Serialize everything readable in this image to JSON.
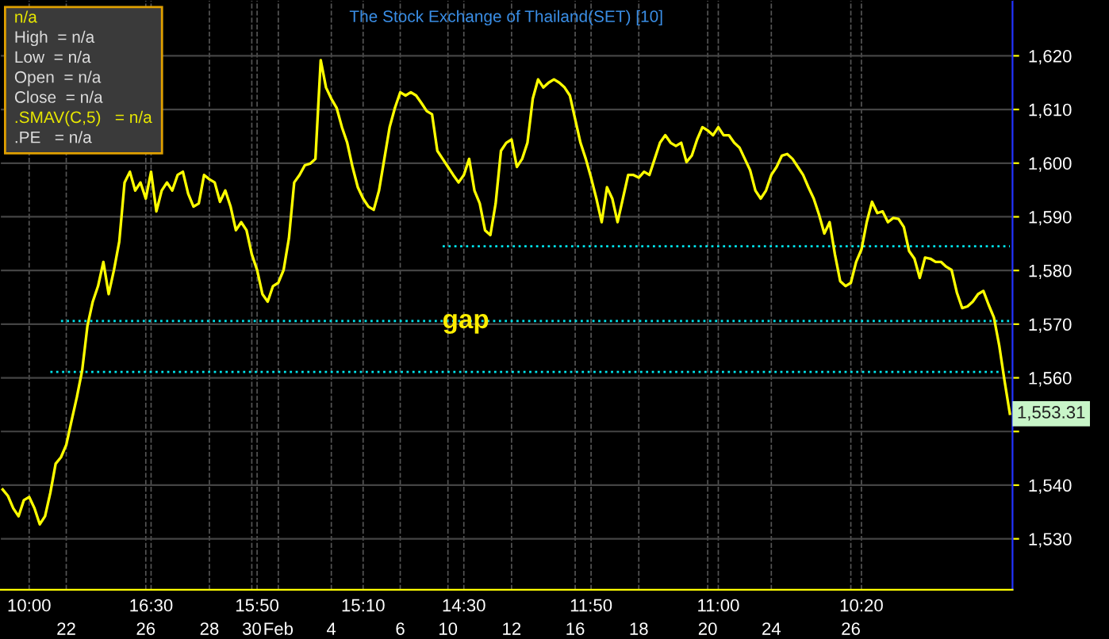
{
  "chart_data": {
    "type": "line",
    "title": "The Stock Exchange of Thailand(SET) [10]",
    "categories": [
      null,
      null,
      null,
      null,
      null,
      "10:00",
      null,
      null,
      null,
      null,
      null,
      null,
      "\n22",
      null,
      null,
      null,
      null,
      null,
      null,
      null,
      null,
      null,
      null,
      null,
      null,
      null,
      null,
      "\n26",
      "16:30",
      null,
      null,
      null,
      null,
      null,
      null,
      null,
      null,
      null,
      null,
      "\n28",
      null,
      null,
      null,
      null,
      null,
      null,
      null,
      "\n30",
      "15:50",
      null,
      null,
      null,
      "\nFeb",
      null,
      null,
      null,
      null,
      null,
      null,
      null,
      null,
      null,
      "\n4",
      null,
      null,
      null,
      null,
      null,
      "15:10",
      null,
      null,
      null,
      null,
      null,
      null,
      "\n6",
      null,
      null,
      null,
      null,
      null,
      null,
      null,
      null,
      "\n10",
      null,
      null,
      "14:30",
      null,
      null,
      null,
      null,
      null,
      null,
      null,
      null,
      "\n12",
      null,
      null,
      null,
      null,
      null,
      null,
      null,
      null,
      null,
      null,
      null,
      "\n16",
      null,
      null,
      "11:50",
      null,
      null,
      null,
      null,
      null,
      null,
      null,
      null,
      "\n18",
      null,
      null,
      null,
      null,
      null,
      null,
      null,
      null,
      null,
      null,
      null,
      null,
      "\n20",
      null,
      "11:00",
      null,
      null,
      null,
      null,
      null,
      null,
      null,
      null,
      null,
      "\n24",
      null,
      null,
      null,
      null,
      null,
      null,
      null,
      null,
      null,
      null,
      null,
      null,
      null,
      null,
      "\n26",
      null,
      "10:20",
      null,
      null,
      null,
      null,
      null,
      null,
      null,
      null,
      null,
      null,
      null,
      null,
      null,
      null,
      null,
      null,
      null,
      null,
      null,
      null,
      null,
      null,
      null,
      null,
      null,
      null,
      null,
      null
    ],
    "series": [
      {
        "color": "#ffff00",
        "values": [
          1539.2,
          1538.0,
          1535.7,
          1534.2,
          1537.2,
          1537.8,
          1535.7,
          1532.7,
          1534.2,
          1538.6,
          1544.0,
          1545.2,
          1547.5,
          1552.0,
          1556.4,
          1561.4,
          1569.7,
          1574.2,
          1577.1,
          1581.6,
          1575.6,
          1580.1,
          1585.4,
          1596.4,
          1598.4,
          1594.9,
          1596.4,
          1593.4,
          1598.4,
          1591.0,
          1594.9,
          1596.4,
          1594.9,
          1597.8,
          1598.4,
          1594.3,
          1591.9,
          1592.5,
          1597.8,
          1597.0,
          1596.4,
          1592.8,
          1594.9,
          1591.9,
          1587.5,
          1589.0,
          1587.5,
          1583.0,
          1580.1,
          1575.6,
          1574.2,
          1577.1,
          1577.7,
          1580.1,
          1586.0,
          1596.4,
          1597.8,
          1599.6,
          1599.9,
          1600.8,
          1619.2,
          1614.1,
          1612.0,
          1610.3,
          1606.7,
          1603.8,
          1599.3,
          1595.5,
          1593.4,
          1591.9,
          1591.3,
          1594.9,
          1600.8,
          1606.7,
          1610.3,
          1613.2,
          1612.6,
          1613.2,
          1612.6,
          1611.2,
          1609.7,
          1609.1,
          1602.3,
          1600.8,
          1599.3,
          1597.8,
          1596.4,
          1597.8,
          1600.8,
          1594.9,
          1592.5,
          1587.5,
          1586.6,
          1592.5,
          1602.3,
          1603.8,
          1604.4,
          1599.3,
          1600.8,
          1603.8,
          1612.0,
          1615.6,
          1614.1,
          1615.0,
          1615.6,
          1615.0,
          1614.1,
          1612.6,
          1608.2,
          1603.8,
          1600.8,
          1597.3,
          1593.4,
          1589.0,
          1595.5,
          1593.4,
          1589.0,
          1593.4,
          1597.8,
          1597.8,
          1597.3,
          1598.4,
          1597.8,
          1600.8,
          1603.8,
          1605.2,
          1603.8,
          1603.2,
          1603.8,
          1600.2,
          1601.4,
          1604.4,
          1606.7,
          1606.1,
          1605.2,
          1606.7,
          1605.2,
          1605.2,
          1603.8,
          1602.9,
          1600.8,
          1598.7,
          1594.9,
          1593.4,
          1594.9,
          1597.8,
          1599.3,
          1601.4,
          1601.7,
          1600.8,
          1599.3,
          1597.8,
          1595.5,
          1593.4,
          1590.4,
          1586.9,
          1589.0,
          1583.0,
          1578.0,
          1577.1,
          1577.7,
          1581.6,
          1583.9,
          1589.0,
          1592.8,
          1590.7,
          1591.0,
          1589.0,
          1589.8,
          1589.6,
          1588.1,
          1583.6,
          1582.2,
          1578.6,
          1582.4,
          1582.2,
          1581.6,
          1581.6,
          1580.7,
          1580.1,
          1575.9,
          1573.0,
          1573.3,
          1574.2,
          1575.6,
          1576.2,
          1573.6,
          1571.2,
          1566.0,
          1559.4,
          1553.31
        ]
      },
      {
        "color": "#00e5ee",
        "line_style": "dotted",
        "values": [
          null,
          null,
          null,
          null,
          null,
          null,
          null,
          null,
          null,
          null,
          null,
          null,
          null,
          null,
          null,
          null,
          null,
          null,
          null,
          null,
          null,
          null,
          null,
          null,
          null,
          null,
          null,
          null,
          null,
          null,
          null,
          null,
          null,
          null,
          null,
          null,
          null,
          null,
          null,
          null,
          null,
          null,
          null,
          null,
          null,
          null,
          null,
          null,
          null,
          null,
          null,
          null,
          null,
          null,
          null,
          null,
          null,
          null,
          null,
          null,
          null,
          null,
          null,
          null,
          null,
          null,
          null,
          null,
          null,
          null,
          null,
          null,
          null,
          null,
          null,
          null,
          null,
          null,
          null,
          null,
          null,
          null,
          null,
          1584.5,
          1584.5,
          1584.5,
          1584.5,
          1584.5,
          1584.5,
          1584.5,
          1584.5,
          1584.5,
          1584.5,
          1584.5,
          1584.5,
          1584.5,
          1584.5,
          1584.5,
          1584.5,
          1584.5,
          1584.5,
          1584.5,
          1584.5,
          1584.5,
          1584.5,
          1584.5,
          1584.5,
          1584.5,
          1584.5,
          1584.5,
          1584.5,
          1584.5,
          1584.5,
          1584.5,
          1584.5,
          1584.5,
          1584.5,
          1584.5,
          1584.5,
          1584.5,
          1584.5,
          1584.5,
          1584.5,
          1584.5,
          1584.5,
          1584.5,
          1584.5,
          1584.5,
          1584.5,
          1584.5,
          1584.5,
          1584.5,
          1584.5,
          1584.5,
          1584.5,
          1584.5,
          1584.5,
          1584.5,
          1584.5,
          1584.5,
          1584.5,
          1584.5,
          1584.5,
          1584.5,
          1584.5,
          1584.5,
          1584.5,
          1584.5,
          1584.5,
          1584.5,
          1584.5,
          1584.5,
          1584.5,
          1584.5,
          1584.5,
          1584.5,
          1584.5,
          1584.5,
          1584.5,
          1584.5,
          1584.5,
          1584.5,
          1584.5,
          1584.5,
          1584.5,
          1584.5,
          1584.5,
          1584.5,
          1584.5,
          1584.5,
          1584.5,
          1584.5,
          1584.5,
          1584.5,
          1584.5,
          1584.5,
          1584.5,
          1584.5,
          1584.5,
          1584.5,
          1584.5,
          1584.5,
          1584.5,
          1584.5,
          1584.5,
          1584.5,
          1584.5,
          1584.5,
          1584.5,
          1584.5,
          1584.5
        ]
      },
      {
        "color": "#00e5ee",
        "line_style": "dotted",
        "values": [
          null,
          null,
          null,
          null,
          null,
          null,
          null,
          null,
          null,
          null,
          null,
          1570.6,
          1570.6,
          1570.6,
          1570.6,
          1570.6,
          1570.6,
          1570.6,
          1570.6,
          1570.6,
          1570.6,
          1570.6,
          1570.6,
          1570.6,
          1570.6,
          1570.6,
          1570.6,
          1570.6,
          1570.6,
          1570.6,
          1570.6,
          1570.6,
          1570.6,
          1570.6,
          1570.6,
          1570.6,
          1570.6,
          1570.6,
          1570.6,
          1570.6,
          1570.6,
          1570.6,
          1570.6,
          1570.6,
          1570.6,
          1570.6,
          1570.6,
          1570.6,
          1570.6,
          1570.6,
          1570.6,
          1570.6,
          1570.6,
          1570.6,
          1570.6,
          1570.6,
          1570.6,
          1570.6,
          1570.6,
          1570.6,
          1570.6,
          1570.6,
          1570.6,
          1570.6,
          1570.6,
          1570.6,
          1570.6,
          1570.6,
          1570.6,
          1570.6,
          1570.6,
          1570.6,
          1570.6,
          1570.6,
          1570.6,
          1570.6,
          1570.6,
          1570.6,
          1570.6,
          1570.6,
          1570.6,
          1570.6,
          1570.6,
          1570.6,
          1570.6,
          1570.6,
          1570.6,
          1570.6,
          1570.6,
          1570.6,
          1570.6,
          1570.6,
          1570.6,
          1570.6,
          1570.6,
          1570.6,
          1570.6,
          1570.6,
          1570.6,
          1570.6,
          1570.6,
          1570.6,
          1570.6,
          1570.6,
          1570.6,
          1570.6,
          1570.6,
          1570.6,
          1570.6,
          1570.6,
          1570.6,
          1570.6,
          1570.6,
          1570.6,
          1570.6,
          1570.6,
          1570.6,
          1570.6,
          1570.6,
          1570.6,
          1570.6,
          1570.6,
          1570.6,
          1570.6,
          1570.6,
          1570.6,
          1570.6,
          1570.6,
          1570.6,
          1570.6,
          1570.6,
          1570.6,
          1570.6,
          1570.6,
          1570.6,
          1570.6,
          1570.6,
          1570.6,
          1570.6,
          1570.6,
          1570.6,
          1570.6,
          1570.6,
          1570.6,
          1570.6,
          1570.6,
          1570.6,
          1570.6,
          1570.6,
          1570.6,
          1570.6,
          1570.6,
          1570.6,
          1570.6,
          1570.6,
          1570.6,
          1570.6,
          1570.6,
          1570.6,
          1570.6,
          1570.6,
          1570.6,
          1570.6,
          1570.6,
          1570.6,
          1570.6,
          1570.6,
          1570.6,
          1570.6,
          1570.6,
          1570.6,
          1570.6,
          1570.6,
          1570.6,
          1570.6,
          1570.6,
          1570.6,
          1570.6,
          1570.6,
          1570.6,
          1570.6,
          1570.6,
          1570.6,
          1570.6,
          1570.6,
          1570.6,
          1570.6,
          1570.6,
          1570.6,
          1570.6,
          1570.6
        ]
      },
      {
        "color": "#00e5ee",
        "line_style": "dotted",
        "values": [
          null,
          null,
          null,
          null,
          null,
          null,
          null,
          null,
          null,
          1561.1,
          1561.1,
          1561.1,
          1561.1,
          1561.1,
          1561.1,
          1561.1,
          1561.1,
          1561.1,
          1561.1,
          1561.1,
          1561.1,
          1561.1,
          1561.1,
          1561.1,
          1561.1,
          1561.1,
          1561.1,
          1561.1,
          1561.1,
          1561.1,
          1561.1,
          1561.1,
          1561.1,
          1561.1,
          1561.1,
          1561.1,
          1561.1,
          1561.1,
          1561.1,
          1561.1,
          1561.1,
          1561.1,
          1561.1,
          1561.1,
          1561.1,
          1561.1,
          1561.1,
          1561.1,
          1561.1,
          1561.1,
          1561.1,
          1561.1,
          1561.1,
          1561.1,
          1561.1,
          1561.1,
          1561.1,
          1561.1,
          1561.1,
          1561.1,
          1561.1,
          1561.1,
          1561.1,
          1561.1,
          1561.1,
          1561.1,
          1561.1,
          1561.1,
          1561.1,
          1561.1,
          1561.1,
          1561.1,
          1561.1,
          1561.1,
          1561.1,
          1561.1,
          1561.1,
          1561.1,
          1561.1,
          1561.1,
          1561.1,
          1561.1,
          1561.1,
          1561.1,
          1561.1,
          1561.1,
          1561.1,
          1561.1,
          1561.1,
          1561.1,
          1561.1,
          1561.1,
          1561.1,
          1561.1,
          1561.1,
          1561.1,
          1561.1,
          1561.1,
          1561.1,
          1561.1,
          1561.1,
          1561.1,
          1561.1,
          1561.1,
          1561.1,
          1561.1,
          1561.1,
          1561.1,
          1561.1,
          1561.1,
          1561.1,
          1561.1,
          1561.1,
          1561.1,
          1561.1,
          1561.1,
          1561.1,
          1561.1,
          1561.1,
          1561.1,
          1561.1,
          1561.1,
          1561.1,
          1561.1,
          1561.1,
          1561.1,
          1561.1,
          1561.1,
          1561.1,
          1561.1,
          1561.1,
          1561.1,
          1561.1,
          1561.1,
          1561.1,
          1561.1,
          1561.1,
          1561.1,
          1561.1,
          1561.1,
          1561.1,
          1561.1,
          1561.1,
          1561.1,
          1561.1,
          1561.1,
          1561.1,
          1561.1,
          1561.1,
          1561.1,
          1561.1,
          1561.1,
          1561.1,
          1561.1,
          1561.1,
          1561.1,
          1561.1,
          1561.1,
          1561.1,
          1561.1,
          1561.1,
          1561.1,
          1561.1,
          1561.1,
          1561.1,
          1561.1,
          1561.1,
          1561.1,
          1561.1,
          1561.1,
          1561.1,
          1561.1,
          1561.1,
          1561.1,
          1561.1,
          1561.1,
          1561.1,
          1561.1,
          1561.1,
          1561.1,
          1561.1,
          1561.1,
          1561.1,
          1561.1,
          1561.1,
          1561.1,
          1561.1,
          1561.1,
          1561.1,
          1561.1,
          1561.1
        ]
      }
    ],
    "ylim": [
      1520.5,
      1630.4
    ],
    "yticks": [
      {
        "value": 1530,
        "label": "1,530"
      },
      {
        "value": 1540,
        "label": "1,540"
      },
      {
        "value": 1550,
        "label": null
      },
      {
        "value": 1560,
        "label": "1,560"
      },
      {
        "value": 1570,
        "label": "1,570"
      },
      {
        "value": 1580,
        "label": "1,580"
      },
      {
        "value": 1590,
        "label": "1,590"
      },
      {
        "value": 1600,
        "label": "1,600"
      },
      {
        "value": 1610,
        "label": "1,610"
      },
      {
        "value": 1620,
        "label": "1,620"
      }
    ],
    "grid": true,
    "annotations": [
      "gap",
      "1,553.31",
      "n/a",
      "High  = n/a",
      "Low  = n/a",
      "Open  = n/a",
      "Close  = n/a",
      ".SMAV(C,5)   = n/a",
      ".PE   = n/a"
    ]
  }
}
